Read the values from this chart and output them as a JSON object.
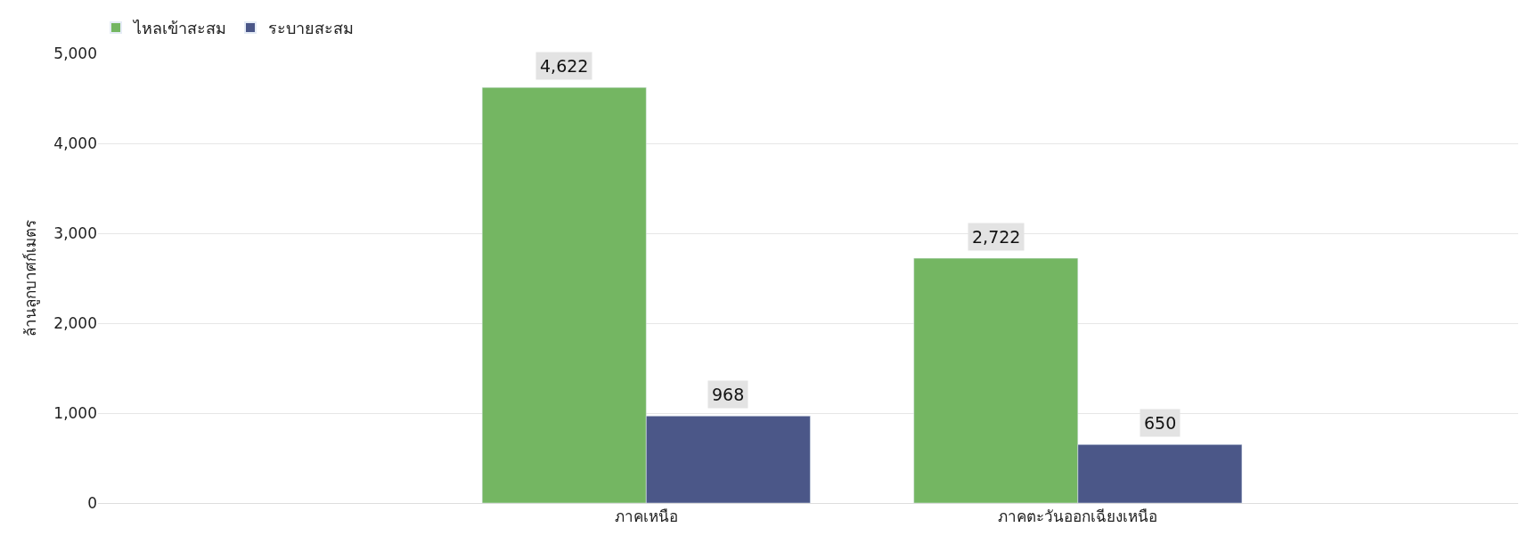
{
  "chart_data": {
    "type": "bar",
    "ylabel": "ล้านลูกบาศก์เมตร",
    "categories": [
      "ภาคเหนือ",
      "ภาคตะวันออกเฉียงเหนือ"
    ],
    "series": [
      {
        "name": "ไหลเข้าสะสม",
        "color": "#74b662",
        "values": [
          4622,
          2722
        ],
        "value_labels": [
          "4,622",
          "2,722"
        ]
      },
      {
        "name": "ระบายสะสม",
        "color": "#4b5788",
        "values": [
          968,
          650
        ],
        "value_labels": [
          "968",
          "650"
        ]
      }
    ],
    "ylim": [
      0,
      5000
    ],
    "yticks": [
      0,
      {
        "value": 1000,
        "label": "1,000"
      },
      {
        "value": 2000,
        "label": "2,000"
      },
      {
        "value": 3000,
        "label": "3,000"
      },
      {
        "value": 4000,
        "label": "4,000"
      },
      {
        "value": 5000,
        "label": "5,000"
      }
    ],
    "grid": "y",
    "legend": "top left"
  }
}
